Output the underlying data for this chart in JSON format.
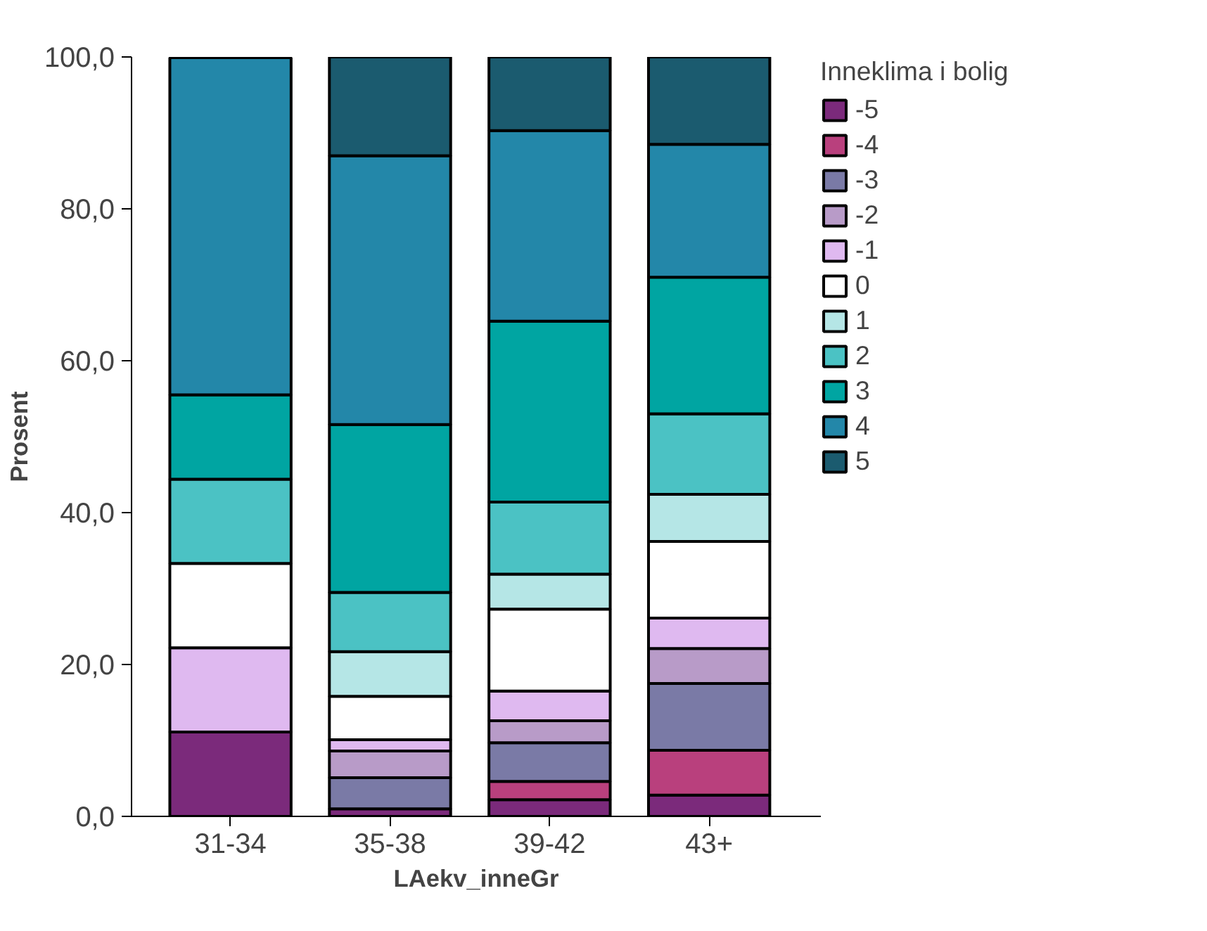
{
  "chart_data": {
    "type": "bar",
    "stacked": true,
    "xlabel": "LAekv_inneGr",
    "ylabel": "Prosent",
    "legend_title": "Inneklima i bolig",
    "legend": "right",
    "grid": false,
    "categories": [
      "31-34",
      "35-38",
      "39-42",
      "43+"
    ],
    "ylim": [
      0,
      100
    ],
    "yticks": [
      {
        "value": 0,
        "label": "0,0"
      },
      {
        "value": 20,
        "label": "20,0"
      },
      {
        "value": 40,
        "label": "40,0"
      },
      {
        "value": 60,
        "label": "60,0"
      },
      {
        "value": 80,
        "label": "80,0"
      },
      {
        "value": 100,
        "label": "100,0"
      }
    ],
    "series": [
      {
        "name": "-5",
        "color": "#7b2a7b",
        "values": [
          11.1,
          1.0,
          2.2,
          2.8
        ]
      },
      {
        "name": "-4",
        "color": "#b9407d",
        "values": [
          null,
          null,
          2.4,
          5.9
        ]
      },
      {
        "name": "-3",
        "color": "#7a7aa6",
        "values": [
          null,
          4.1,
          5.1,
          8.8
        ]
      },
      {
        "name": "-2",
        "color": "#b89bc8",
        "values": [
          null,
          3.5,
          2.9,
          4.6
        ]
      },
      {
        "name": "-1",
        "color": "#dfb9f0",
        "values": [
          11.1,
          1.5,
          3.9,
          4.0
        ]
      },
      {
        "name": "0",
        "color": "#ffffff",
        "values": [
          11.1,
          5.7,
          10.8,
          10.1
        ]
      },
      {
        "name": "1",
        "color": "#b5e6e6",
        "values": [
          null,
          5.9,
          4.6,
          6.2
        ]
      },
      {
        "name": "2",
        "color": "#4bc2c4",
        "values": [
          11.1,
          7.8,
          9.5,
          10.6
        ]
      },
      {
        "name": "3",
        "color": "#00a5a2",
        "values": [
          11.1,
          22.1,
          23.8,
          18.0
        ]
      },
      {
        "name": "4",
        "color": "#2387a9",
        "values": [
          44.4,
          35.4,
          25.1,
          17.5
        ]
      },
      {
        "name": "5",
        "color": "#1b5b6f",
        "values": [
          null,
          13.0,
          9.7,
          11.5
        ]
      }
    ]
  }
}
